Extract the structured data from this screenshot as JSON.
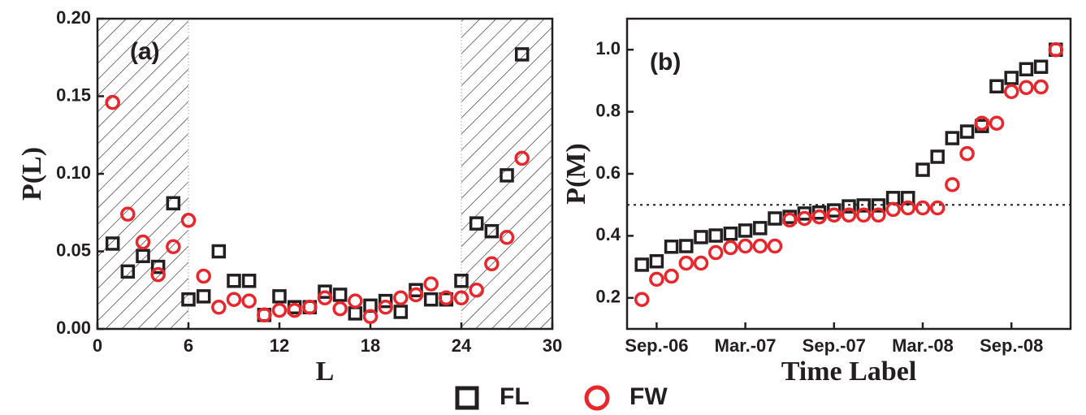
{
  "chart_data": [
    {
      "type": "scatter",
      "label": "(a)",
      "xlabel": "L",
      "ylabel": "P(L)",
      "x": [
        1,
        2,
        3,
        4,
        5,
        6,
        7,
        8,
        9,
        10,
        11,
        12,
        13,
        14,
        15,
        16,
        17,
        18,
        19,
        20,
        21,
        22,
        23,
        24,
        25,
        26,
        27,
        28
      ],
      "xlim": [
        0,
        30
      ],
      "xticks": [
        0,
        6,
        12,
        18,
        24,
        30
      ],
      "ylim": [
        0,
        0.2
      ],
      "yticks": [
        {
          "value": 0,
          "label": "0.00"
        },
        0.05,
        {
          "value": 0.1,
          "label": "0.10"
        },
        0.15,
        {
          "value": 0.2,
          "label": "0.20"
        }
      ],
      "shaded_ranges": [
        [
          0,
          6
        ],
        [
          24,
          30
        ]
      ],
      "legend": "bottom",
      "series": [
        {
          "name": "FL",
          "marker": "square",
          "color": "#231f20",
          "values": [
            0.055,
            0.037,
            0.047,
            0.04,
            0.081,
            0.019,
            0.021,
            0.05,
            0.031,
            0.031,
            0.009,
            0.021,
            0.014,
            0.014,
            0.024,
            0.022,
            0.01,
            0.015,
            0.018,
            0.011,
            0.025,
            0.019,
            0.019,
            0.031,
            0.068,
            0.063,
            0.099,
            0.177
          ]
        },
        {
          "name": "FW",
          "marker": "circle",
          "color": "#e8262b",
          "values": [
            0.146,
            0.074,
            0.056,
            0.035,
            0.053,
            0.07,
            0.034,
            0.014,
            0.019,
            0.018,
            0.009,
            0.012,
            0.012,
            0.014,
            0.02,
            0.013,
            0.018,
            0.008,
            0.014,
            0.02,
            0.022,
            0.029,
            0.02,
            0.02,
            0.025,
            0.042,
            0.059,
            0.11
          ]
        }
      ]
    },
    {
      "type": "scatter",
      "label": "(b)",
      "xlabel": "Time Label",
      "ylabel": "P(M)",
      "categories": [
        null,
        "Sep.-06",
        null,
        null,
        null,
        null,
        null,
        "Mar.-07",
        null,
        null,
        null,
        null,
        null,
        "Sep.-07",
        null,
        null,
        null,
        null,
        null,
        "Mar.-08",
        null,
        null,
        null,
        null,
        null,
        "Sep.-08",
        null,
        null,
        null
      ],
      "ylim": [
        0.1,
        1.1
      ],
      "yticks": [
        0.2,
        0.4,
        0.6,
        0.8,
        {
          "value": 1,
          "label": "1.0"
        }
      ],
      "hline": 0.5,
      "series": [
        {
          "marker": "square",
          "color": "#231f20",
          "values": [
            0.307,
            0.318,
            0.365,
            0.367,
            0.396,
            0.401,
            0.407,
            0.417,
            0.425,
            0.456,
            0.461,
            0.472,
            0.475,
            0.482,
            0.495,
            0.498,
            0.498,
            0.522,
            0.522,
            0.613,
            0.655,
            0.715,
            0.736,
            0.754,
            0.882,
            0.909,
            0.937,
            0.945,
            1.0
          ]
        },
        {
          "marker": "circle",
          "color": "#e8262b",
          "values": [
            0.195,
            0.26,
            0.27,
            0.312,
            0.312,
            0.346,
            0.362,
            0.367,
            0.367,
            0.367,
            0.451,
            0.456,
            0.461,
            0.467,
            0.467,
            0.467,
            0.467,
            0.485,
            0.49,
            0.49,
            0.49,
            0.565,
            0.665,
            0.763,
            0.763,
            0.865,
            0.878,
            0.88,
            1.0
          ]
        }
      ]
    }
  ]
}
